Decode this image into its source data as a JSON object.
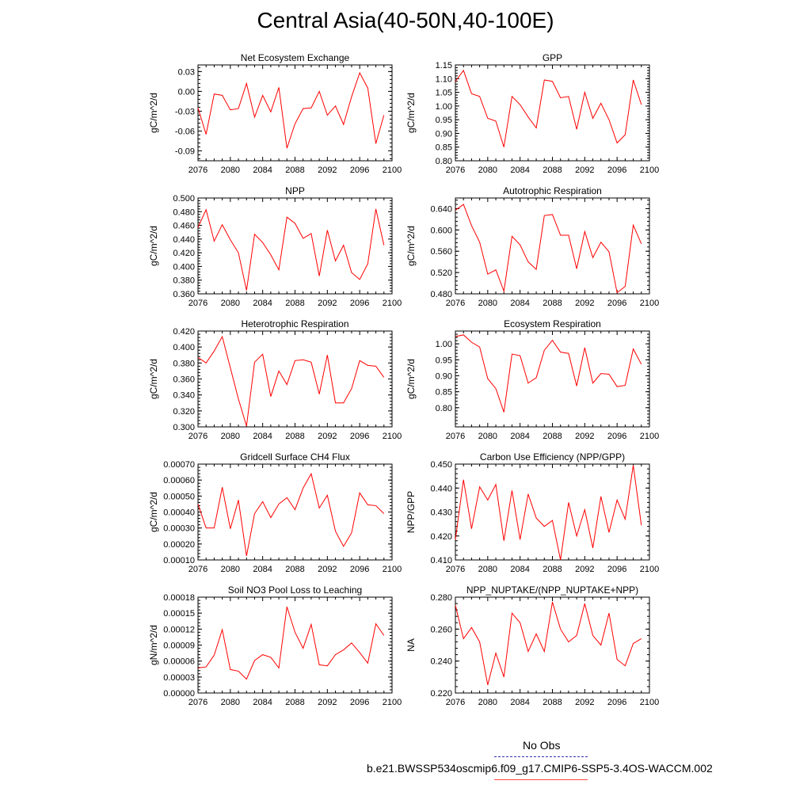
{
  "title": "Central Asia(40-50N,40-100E)",
  "legend": {
    "obs_label": "No Obs",
    "model_label": "b.e21.BWSSP534oscmip6.f09_g17.CMIP6-SSP5-3.4OS-WACCM.002",
    "obs_color": "#3333bb",
    "model_color": "#ff0000"
  },
  "chart_data": [
    {
      "type": "line",
      "title": "Net Ecosystem Exchange",
      "ylabel": "gC/m^2/d",
      "xlim": [
        2076,
        2100
      ],
      "ylim": [
        -0.105,
        0.04
      ],
      "xticks": [
        "2076",
        "2080",
        "2084",
        "2088",
        "2092",
        "2096",
        "2100"
      ],
      "yticks": [
        "0.03",
        "0.00",
        "-0.03",
        "-0.06",
        "-0.09"
      ],
      "x": [
        2076,
        2077,
        2078,
        2079,
        2080,
        2081,
        2082,
        2083,
        2084,
        2085,
        2086,
        2087,
        2088,
        2089,
        2090,
        2091,
        2092,
        2093,
        2094,
        2095,
        2096,
        2097,
        2098,
        2099
      ],
      "values": [
        -0.025,
        -0.065,
        -0.004,
        -0.006,
        -0.028,
        -0.026,
        0.012,
        -0.039,
        -0.006,
        -0.031,
        0.006,
        -0.086,
        -0.049,
        -0.026,
        -0.025,
        0.0,
        -0.036,
        -0.022,
        -0.05,
        -0.008,
        0.028,
        0.005,
        -0.079,
        -0.036
      ]
    },
    {
      "type": "line",
      "title": "GPP",
      "ylabel": "gC/m^2/d",
      "xlim": [
        2076,
        2100
      ],
      "ylim": [
        0.8,
        1.15
      ],
      "xticks": [
        "2076",
        "2080",
        "2084",
        "2088",
        "2092",
        "2096",
        "2100"
      ],
      "yticks": [
        "1.15",
        "1.10",
        "1.05",
        "1.00",
        "0.95",
        "0.90",
        "0.85",
        "0.80"
      ],
      "x": [
        2076,
        2077,
        2078,
        2079,
        2080,
        2081,
        2082,
        2083,
        2084,
        2085,
        2086,
        2087,
        2088,
        2089,
        2090,
        2091,
        2092,
        2093,
        2094,
        2095,
        2096,
        2097,
        2098,
        2099
      ],
      "values": [
        1.09,
        1.13,
        1.045,
        1.035,
        0.955,
        0.945,
        0.85,
        1.035,
        1.005,
        0.96,
        0.92,
        1.095,
        1.09,
        1.03,
        1.035,
        0.915,
        1.05,
        0.955,
        1.01,
        0.95,
        0.865,
        0.895,
        1.095,
        1.005
      ]
    },
    {
      "type": "line",
      "title": "NPP",
      "ylabel": "gC/m^2/d",
      "xlim": [
        2076,
        2100
      ],
      "ylim": [
        0.36,
        0.5
      ],
      "xticks": [
        "2076",
        "2080",
        "2084",
        "2088",
        "2092",
        "2096",
        "2100"
      ],
      "yticks": [
        "0.500",
        "0.480",
        "0.460",
        "0.440",
        "0.420",
        "0.400",
        "0.380",
        "0.360"
      ],
      "x": [
        2076,
        2077,
        2078,
        2079,
        2080,
        2081,
        2082,
        2083,
        2084,
        2085,
        2086,
        2087,
        2088,
        2089,
        2090,
        2091,
        2092,
        2093,
        2094,
        2095,
        2096,
        2097,
        2098,
        2099
      ],
      "values": [
        0.457,
        0.483,
        0.437,
        0.461,
        0.439,
        0.42,
        0.365,
        0.447,
        0.435,
        0.417,
        0.395,
        0.472,
        0.463,
        0.441,
        0.448,
        0.386,
        0.453,
        0.408,
        0.431,
        0.391,
        0.381,
        0.404,
        0.484,
        0.431
      ]
    },
    {
      "type": "line",
      "title": "Autotrophic Respiration",
      "ylabel": "gC/m^2/d",
      "xlim": [
        2076,
        2100
      ],
      "ylim": [
        0.48,
        0.66
      ],
      "xticks": [
        "2076",
        "2080",
        "2084",
        "2088",
        "2092",
        "2096",
        "2100"
      ],
      "yticks": [
        "0.640",
        "0.600",
        "0.560",
        "0.520",
        "0.480"
      ],
      "x": [
        2076,
        2077,
        2078,
        2079,
        2080,
        2081,
        2082,
        2083,
        2084,
        2085,
        2086,
        2087,
        2088,
        2089,
        2090,
        2091,
        2092,
        2093,
        2094,
        2095,
        2096,
        2097,
        2098,
        2099
      ],
      "values": [
        0.637,
        0.648,
        0.608,
        0.577,
        0.517,
        0.525,
        0.485,
        0.588,
        0.572,
        0.54,
        0.526,
        0.627,
        0.629,
        0.59,
        0.59,
        0.527,
        0.597,
        0.548,
        0.577,
        0.559,
        0.482,
        0.494,
        0.609,
        0.574
      ]
    },
    {
      "type": "line",
      "title": "Heterotrophic Respiration",
      "ylabel": "gC/m^2/d",
      "xlim": [
        2076,
        2100
      ],
      "ylim": [
        0.3,
        0.42
      ],
      "xticks": [
        "2076",
        "2080",
        "2084",
        "2088",
        "2092",
        "2096",
        "2100"
      ],
      "yticks": [
        "0.420",
        "0.400",
        "0.380",
        "0.360",
        "0.340",
        "0.320",
        "0.300"
      ],
      "x": [
        2076,
        2077,
        2078,
        2079,
        2080,
        2081,
        2082,
        2083,
        2084,
        2085,
        2086,
        2087,
        2088,
        2089,
        2090,
        2091,
        2092,
        2093,
        2094,
        2095,
        2096,
        2097,
        2098,
        2099
      ],
      "values": [
        0.387,
        0.38,
        0.395,
        0.413,
        0.374,
        0.335,
        0.301,
        0.381,
        0.391,
        0.338,
        0.37,
        0.353,
        0.383,
        0.384,
        0.381,
        0.341,
        0.39,
        0.33,
        0.33,
        0.348,
        0.383,
        0.377,
        0.376,
        0.362
      ]
    },
    {
      "type": "line",
      "title": "Ecosystem Respiration",
      "ylabel": "gC/m^2/d",
      "xlim": [
        2076,
        2100
      ],
      "ylim": [
        0.74,
        1.04
      ],
      "xticks": [
        "2076",
        "2080",
        "2084",
        "2088",
        "2092",
        "2096",
        "2100"
      ],
      "yticks": [
        "1.00",
        "0.95",
        "0.90",
        "0.85",
        "0.80"
      ],
      "x": [
        2076,
        2077,
        2078,
        2079,
        2080,
        2081,
        2082,
        2083,
        2084,
        2085,
        2086,
        2087,
        2088,
        2089,
        2090,
        2091,
        2092,
        2093,
        2094,
        2095,
        2096,
        2097,
        2098,
        2099
      ],
      "values": [
        1.023,
        1.028,
        1.005,
        0.99,
        0.891,
        0.86,
        0.786,
        0.968,
        0.963,
        0.877,
        0.894,
        0.98,
        1.011,
        0.974,
        0.97,
        0.868,
        0.988,
        0.877,
        0.907,
        0.905,
        0.866,
        0.87,
        0.984,
        0.936
      ]
    },
    {
      "type": "line",
      "title": "Gridcell Surface CH4 Flux",
      "ylabel": "gC/m^2/d",
      "xlim": [
        2076,
        2100
      ],
      "ylim": [
        0.0001,
        0.0007
      ],
      "xticks": [
        "2076",
        "2080",
        "2084",
        "2088",
        "2092",
        "2096",
        "2100"
      ],
      "yticks": [
        "0.00070",
        "0.00060",
        "0.00050",
        "0.00040",
        "0.00030",
        "0.00020",
        "0.00010"
      ],
      "x": [
        2076,
        2077,
        2078,
        2079,
        2080,
        2081,
        2082,
        2083,
        2084,
        2085,
        2086,
        2087,
        2088,
        2089,
        2090,
        2091,
        2092,
        2093,
        2094,
        2095,
        2096,
        2097,
        2098,
        2099
      ],
      "values": [
        0.00045,
        0.0003,
        0.0003,
        0.000555,
        0.000295,
        0.000475,
        0.000125,
        0.00039,
        0.000465,
        0.000365,
        0.00045,
        0.00049,
        0.000415,
        0.00055,
        0.00064,
        0.000425,
        0.000505,
        0.00028,
        0.000185,
        0.00027,
        0.00052,
        0.000445,
        0.00044,
        0.00039
      ]
    },
    {
      "type": "line",
      "title": "Carbon Use Efficiency (NPP/GPP)",
      "ylabel": "NPP/GPP",
      "xlim": [
        2076,
        2100
      ],
      "ylim": [
        0.41,
        0.45
      ],
      "xticks": [
        "2076",
        "2080",
        "2084",
        "2088",
        "2092",
        "2096",
        "2100"
      ],
      "yticks": [
        "0.450",
        "0.440",
        "0.430",
        "0.420",
        "0.410"
      ],
      "x": [
        2076,
        2077,
        2078,
        2079,
        2080,
        2081,
        2082,
        2083,
        2084,
        2085,
        2086,
        2087,
        2088,
        2089,
        2090,
        2091,
        2092,
        2093,
        2094,
        2095,
        2096,
        2097,
        2098,
        2099
      ],
      "values": [
        0.4185,
        0.4435,
        0.423,
        0.4405,
        0.435,
        0.4415,
        0.418,
        0.439,
        0.4185,
        0.4375,
        0.4275,
        0.424,
        0.4265,
        0.41,
        0.434,
        0.42,
        0.431,
        0.415,
        0.4365,
        0.4215,
        0.435,
        0.427,
        0.4495,
        0.4245
      ]
    },
    {
      "type": "line",
      "title": "Soil NO3 Pool Loss to Leaching",
      "ylabel": "gN/m^2/d",
      "xlim": [
        2076,
        2100
      ],
      "ylim": [
        0,
        0.00018
      ],
      "xticks": [
        "2076",
        "2080",
        "2084",
        "2088",
        "2092",
        "2096",
        "2100"
      ],
      "yticks": [
        "0.00018",
        "0.00015",
        "0.00012",
        "0.00009",
        "0.00006",
        "0.00003",
        "0.00000"
      ],
      "x": [
        2076,
        2077,
        2078,
        2079,
        2080,
        2081,
        2082,
        2083,
        2084,
        2085,
        2086,
        2087,
        2088,
        2089,
        2090,
        2091,
        2092,
        2093,
        2094,
        2095,
        2096,
        2097,
        2098,
        2099
      ],
      "values": [
        4.7e-05,
        4.9e-05,
        7.1e-05,
        0.000119,
        4.4e-05,
        4.1e-05,
        2.6e-05,
        6.1e-05,
        7.2e-05,
        6.7e-05,
        4.7e-05,
        0.000162,
        0.000114,
        8.4e-05,
        0.000129,
        5.3e-05,
        5.1e-05,
        7.2e-05,
        8.1e-05,
        9.4e-05,
        7.6e-05,
        5.6e-05,
        0.00013,
        0.000108
      ]
    },
    {
      "type": "line",
      "title": "NPP_NUPTAKE/(NPP_NUPTAKE+NPP)",
      "ylabel": "NA",
      "xlim": [
        2076,
        2100
      ],
      "ylim": [
        0.22,
        0.28
      ],
      "xticks": [
        "2076",
        "2080",
        "2084",
        "2088",
        "2092",
        "2096",
        "2100"
      ],
      "yticks": [
        "0.280",
        "0.260",
        "0.240",
        "0.220"
      ],
      "x": [
        2076,
        2077,
        2078,
        2079,
        2080,
        2081,
        2082,
        2083,
        2084,
        2085,
        2086,
        2087,
        2088,
        2089,
        2090,
        2091,
        2092,
        2093,
        2094,
        2095,
        2096,
        2097,
        2098,
        2099
      ],
      "values": [
        0.275,
        0.254,
        0.261,
        0.252,
        0.225,
        0.245,
        0.23,
        0.27,
        0.264,
        0.246,
        0.257,
        0.246,
        0.277,
        0.26,
        0.252,
        0.256,
        0.276,
        0.256,
        0.25,
        0.27,
        0.241,
        0.237,
        0.251,
        0.254
      ]
    }
  ]
}
